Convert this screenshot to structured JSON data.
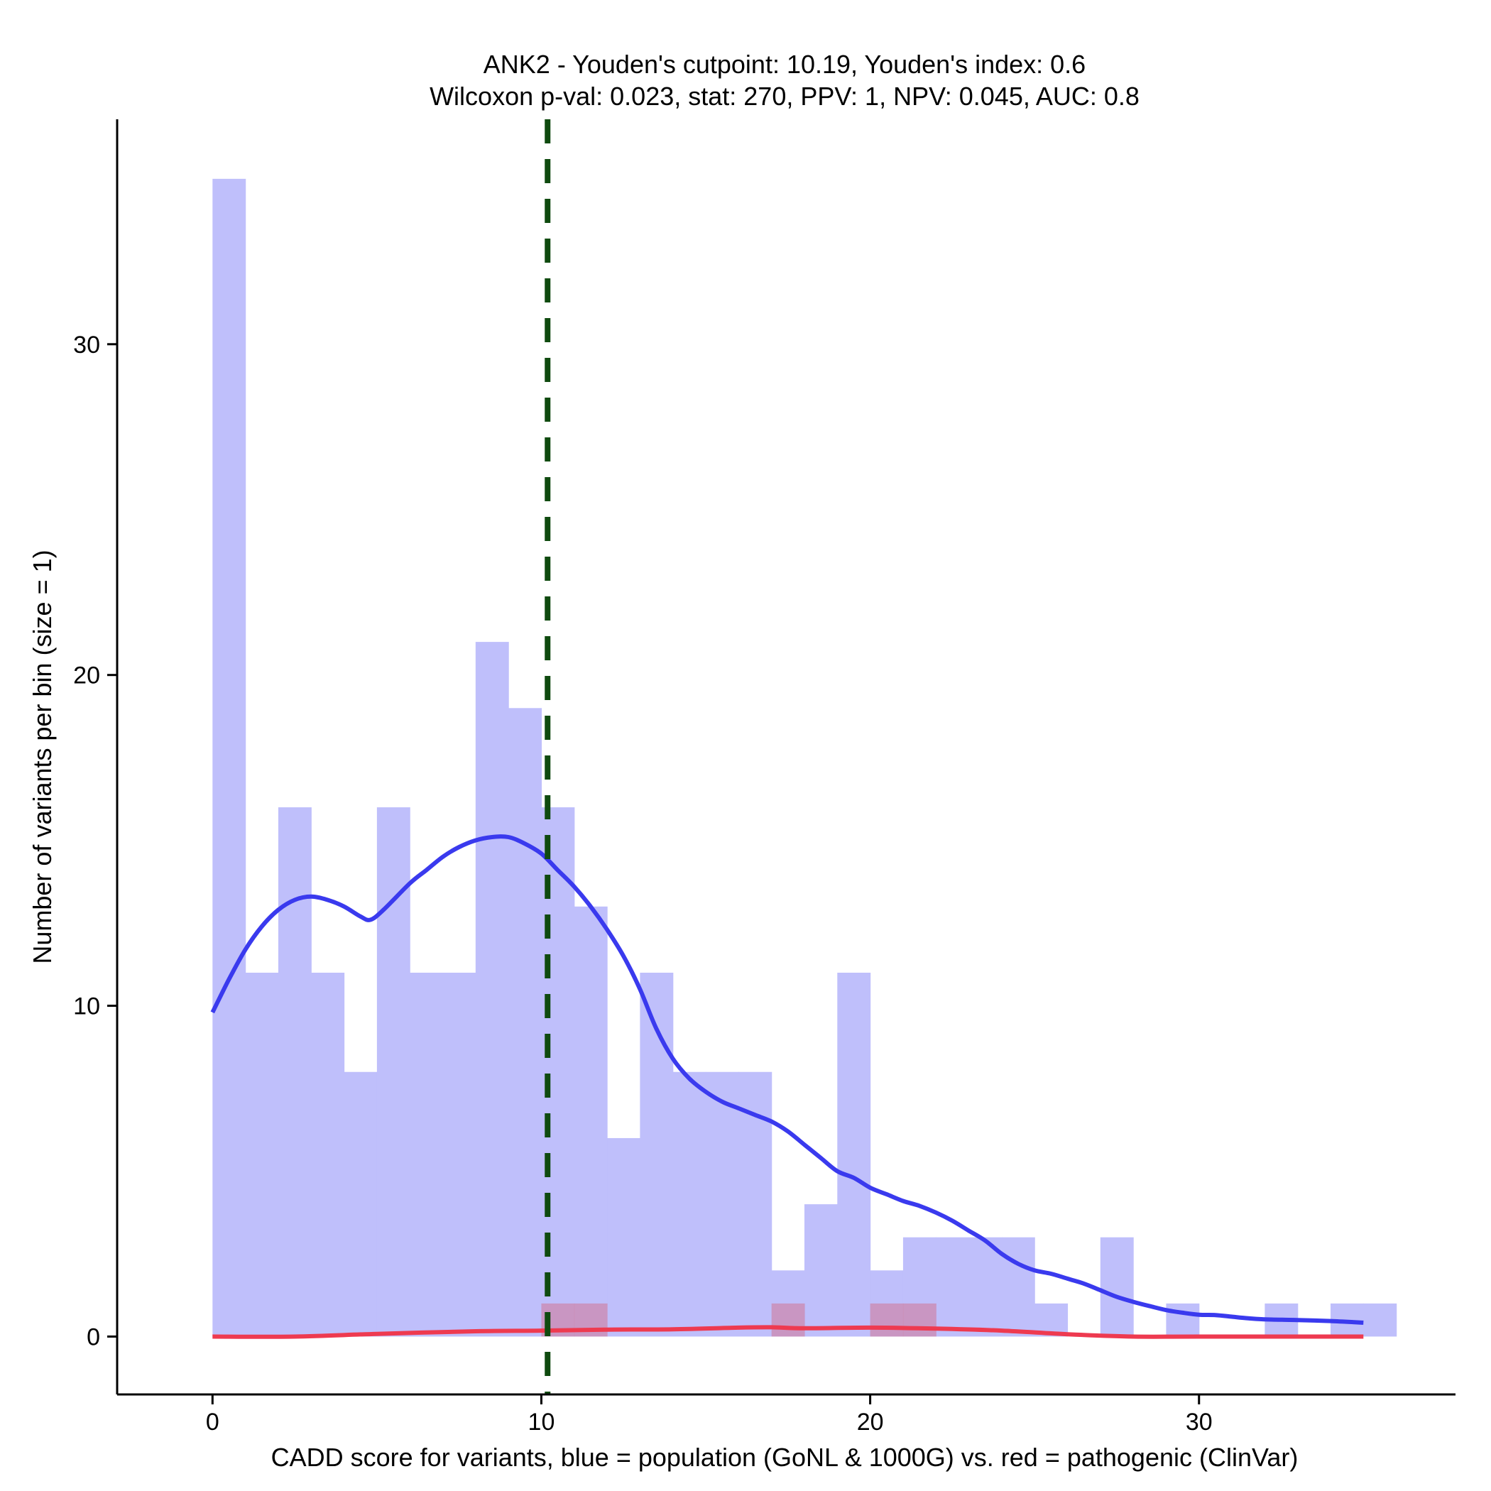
{
  "chart_data": {
    "type": "histogram",
    "title_line1": "ANK2 - Youden's cutpoint: 10.19, Youden's index: 0.6",
    "title_line2": "Wilcoxon p-val: 0.023, stat: 270, PPV: 1, NPV: 0.045, AUC: 0.8",
    "xlabel": "CADD score for variants, blue = population (GoNL & 1000G) vs. red = pathogenic (ClinVar)",
    "ylabel": "Number of variants per bin (size = 1)",
    "xlim": [
      -2.9,
      37.8
    ],
    "ylim": [
      -1.75,
      36.8
    ],
    "x_ticks": [
      0,
      10,
      20,
      30
    ],
    "x_tick_labels": [
      "0",
      "10",
      "20",
      "30"
    ],
    "y_ticks": [
      0,
      10,
      20,
      30
    ],
    "y_tick_labels": [
      "0",
      "10",
      "20",
      "30"
    ],
    "bin_size": 1,
    "cutpoint": 10.19,
    "colors": {
      "population_fill": "#bfbffb",
      "pathogenic_fill": "#cc8cb4",
      "population_density": "#3a3aee",
      "pathogenic_density": "#ee3a50",
      "cutpoint_line": "#0f4a0f",
      "axis": "#000000"
    },
    "series": [
      {
        "name": "population (GoNL & 1000G)",
        "bins": [
          {
            "start": 0,
            "count": 35
          },
          {
            "start": 1,
            "count": 11
          },
          {
            "start": 2,
            "count": 16
          },
          {
            "start": 3,
            "count": 11
          },
          {
            "start": 4,
            "count": 8
          },
          {
            "start": 5,
            "count": 16
          },
          {
            "start": 6,
            "count": 11
          },
          {
            "start": 7,
            "count": 11
          },
          {
            "start": 8,
            "count": 21
          },
          {
            "start": 9,
            "count": 19
          },
          {
            "start": 10,
            "count": 16
          },
          {
            "start": 11,
            "count": 13
          },
          {
            "start": 12,
            "count": 6
          },
          {
            "start": 13,
            "count": 11
          },
          {
            "start": 14,
            "count": 8
          },
          {
            "start": 15,
            "count": 8
          },
          {
            "start": 16,
            "count": 8
          },
          {
            "start": 17,
            "count": 2
          },
          {
            "start": 18,
            "count": 4
          },
          {
            "start": 19,
            "count": 11
          },
          {
            "start": 20,
            "count": 2
          },
          {
            "start": 21,
            "count": 3
          },
          {
            "start": 22,
            "count": 3
          },
          {
            "start": 23,
            "count": 3
          },
          {
            "start": 24,
            "count": 3
          },
          {
            "start": 25,
            "count": 1
          },
          {
            "start": 26,
            "count": 0
          },
          {
            "start": 27,
            "count": 3
          },
          {
            "start": 28,
            "count": 0
          },
          {
            "start": 29,
            "count": 1
          },
          {
            "start": 30,
            "count": 0
          },
          {
            "start": 31,
            "count": 0
          },
          {
            "start": 32,
            "count": 1
          },
          {
            "start": 33,
            "count": 0
          },
          {
            "start": 34,
            "count": 1
          },
          {
            "start": 35,
            "count": 1
          }
        ],
        "density_curve": [
          [
            0,
            9.8
          ],
          [
            0.5,
            10.8
          ],
          [
            1,
            11.7
          ],
          [
            1.5,
            12.4
          ],
          [
            2,
            12.9
          ],
          [
            2.5,
            13.2
          ],
          [
            3,
            13.3
          ],
          [
            3.5,
            13.2
          ],
          [
            4,
            13.0
          ],
          [
            4.5,
            12.7
          ],
          [
            4.8,
            12.6
          ],
          [
            5.2,
            12.9
          ],
          [
            6,
            13.7
          ],
          [
            6.5,
            14.1
          ],
          [
            7,
            14.5
          ],
          [
            7.5,
            14.8
          ],
          [
            8,
            15.0
          ],
          [
            8.5,
            15.1
          ],
          [
            9,
            15.1
          ],
          [
            9.5,
            14.9
          ],
          [
            10,
            14.6
          ],
          [
            10.5,
            14.1
          ],
          [
            11,
            13.6
          ],
          [
            11.5,
            13.0
          ],
          [
            12,
            12.3
          ],
          [
            12.5,
            11.5
          ],
          [
            13,
            10.5
          ],
          [
            13.5,
            9.3
          ],
          [
            14,
            8.4
          ],
          [
            14.5,
            7.8
          ],
          [
            15,
            7.4
          ],
          [
            15.5,
            7.1
          ],
          [
            16,
            6.9
          ],
          [
            16.5,
            6.7
          ],
          [
            17,
            6.5
          ],
          [
            17.5,
            6.2
          ],
          [
            18,
            5.8
          ],
          [
            18.5,
            5.4
          ],
          [
            19,
            5.0
          ],
          [
            19.5,
            4.8
          ],
          [
            20,
            4.5
          ],
          [
            20.5,
            4.3
          ],
          [
            21,
            4.1
          ],
          [
            21.5,
            3.95
          ],
          [
            22,
            3.75
          ],
          [
            22.5,
            3.5
          ],
          [
            23,
            3.2
          ],
          [
            23.5,
            2.9
          ],
          [
            24,
            2.5
          ],
          [
            24.5,
            2.2
          ],
          [
            25,
            2.0
          ],
          [
            25.5,
            1.9
          ],
          [
            26,
            1.75
          ],
          [
            26.5,
            1.6
          ],
          [
            27,
            1.4
          ],
          [
            27.5,
            1.2
          ],
          [
            28,
            1.05
          ],
          [
            28.5,
            0.92
          ],
          [
            29,
            0.8
          ],
          [
            29.5,
            0.72
          ],
          [
            30,
            0.66
          ],
          [
            30.5,
            0.65
          ],
          [
            31,
            0.6
          ],
          [
            31.5,
            0.55
          ],
          [
            32,
            0.52
          ],
          [
            33,
            0.5
          ],
          [
            34,
            0.47
          ],
          [
            35,
            0.42
          ]
        ]
      },
      {
        "name": "pathogenic (ClinVar)",
        "bins": [
          {
            "start": 10,
            "count": 1
          },
          {
            "start": 11,
            "count": 1
          },
          {
            "start": 17,
            "count": 1
          },
          {
            "start": 20,
            "count": 1
          },
          {
            "start": 21,
            "count": 1
          }
        ],
        "density_curve": [
          [
            0,
            0.0
          ],
          [
            2.5,
            0.0
          ],
          [
            5,
            0.08
          ],
          [
            8,
            0.16
          ],
          [
            10,
            0.18
          ],
          [
            12,
            0.21
          ],
          [
            14,
            0.22
          ],
          [
            16,
            0.27
          ],
          [
            17,
            0.28
          ],
          [
            18,
            0.25
          ],
          [
            20,
            0.27
          ],
          [
            22,
            0.24
          ],
          [
            24,
            0.18
          ],
          [
            26,
            0.07
          ],
          [
            28,
            0.0
          ],
          [
            30,
            0.0
          ],
          [
            35,
            0.0
          ]
        ]
      }
    ]
  }
}
